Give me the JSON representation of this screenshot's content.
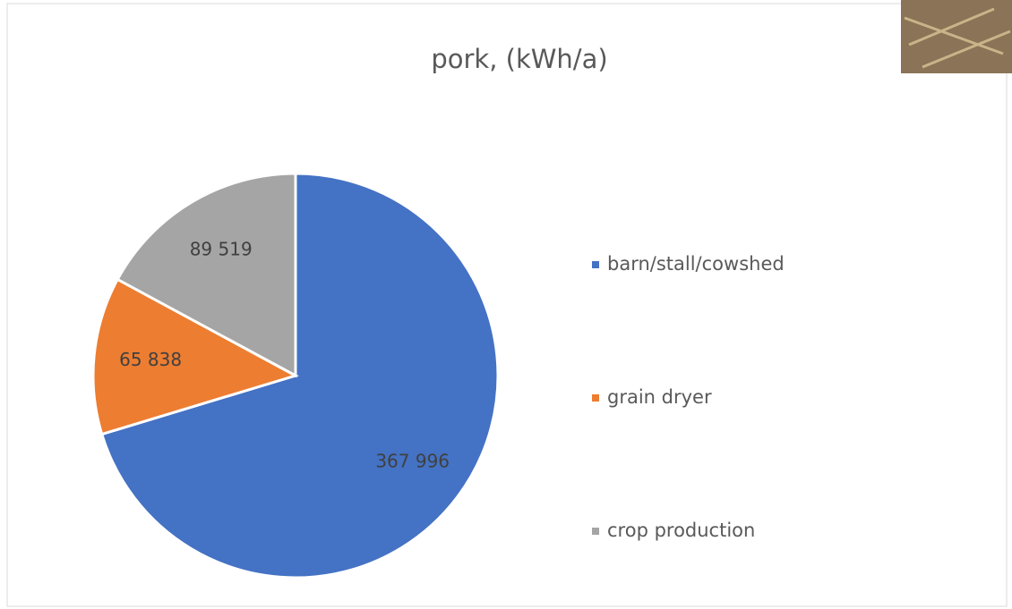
{
  "chart_data": {
    "type": "pie",
    "title": "pork, (kWh/a)",
    "categories": [
      "barn/stall/cowshed",
      "grain dryer",
      "crop production"
    ],
    "values": [
      367996,
      65838,
      89519
    ],
    "value_labels": [
      "367 996",
      "65 838",
      "89 519"
    ],
    "colors": [
      "#4472c4",
      "#ed7d31",
      "#a5a5a5"
    ],
    "legend": "right"
  }
}
